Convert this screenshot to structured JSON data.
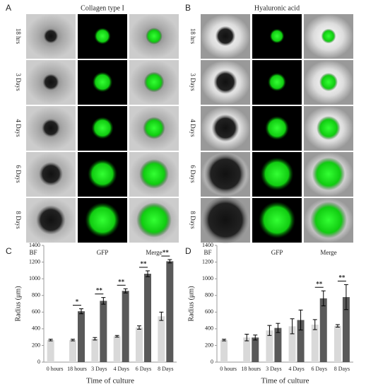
{
  "image_panels": [
    {
      "label": "A",
      "title": "Collagen type I",
      "rows": [
        "18 hrs",
        "3 Days",
        "4 Days",
        "6 Days",
        "8 Days"
      ],
      "columns": [
        "BF",
        "GFP",
        "Merge"
      ]
    },
    {
      "label": "B",
      "title": "Hyaluronic acid",
      "rows": [
        "18 hrs",
        "3 Days",
        "4 Days",
        "6 Days",
        "8 Days"
      ],
      "columns": [
        "BF",
        "GFP",
        "Merge"
      ]
    }
  ],
  "chart_data": [
    {
      "type": "bar",
      "label": "C",
      "y_label": "Radius (μm)",
      "x_label": "Time of culture",
      "categories": [
        "0 hours",
        "18 hours",
        "3 Days",
        "4 Days",
        "6 Days",
        "8 Days"
      ],
      "series": [
        {
          "color": "#d9d9d9",
          "values": [
            265,
            265,
            280,
            310,
            415,
            550
          ],
          "errors": [
            10,
            10,
            15,
            10,
            20,
            50
          ]
        },
        {
          "color": "#595959",
          "values": [
            null,
            610,
            735,
            855,
            1060,
            1210
          ],
          "errors": [
            null,
            30,
            40,
            25,
            35,
            20
          ]
        }
      ],
      "significance": [
        null,
        "*",
        "**",
        "**",
        "**",
        "**"
      ],
      "ylim": [
        0,
        1400
      ],
      "yticks": [
        0,
        200,
        400,
        600,
        800,
        1000,
        1200,
        1400
      ]
    },
    {
      "type": "bar",
      "label": "D",
      "y_label": "Radius (μm)",
      "x_label": "Time of culture",
      "categories": [
        "0 hours",
        "18 hours",
        "3 Days",
        "4 Days",
        "6 Days",
        "8 Days"
      ],
      "series": [
        {
          "color": "#d9d9d9",
          "values": [
            265,
            295,
            380,
            430,
            450,
            435
          ],
          "errors": [
            10,
            40,
            60,
            90,
            60,
            15
          ]
        },
        {
          "color": "#595959",
          "values": [
            null,
            295,
            410,
            505,
            765,
            780
          ],
          "errors": [
            null,
            30,
            55,
            120,
            90,
            150
          ]
        }
      ],
      "significance": [
        null,
        null,
        null,
        null,
        "**",
        "**"
      ],
      "ylim": [
        0,
        1400
      ],
      "yticks": [
        0,
        200,
        400,
        600,
        800,
        1000,
        1200,
        1400
      ]
    }
  ]
}
